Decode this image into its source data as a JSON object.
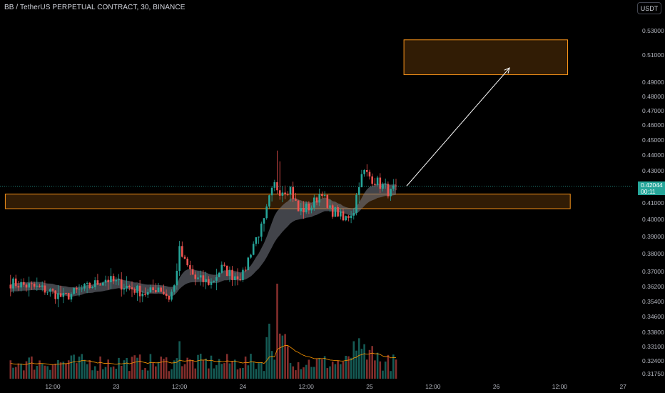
{
  "title": "BB / TetherUS PERPETUAL CONTRACT, 30, BINANCE",
  "currency_button": "USDT",
  "last_price": {
    "value": "0.42044",
    "countdown": "00:11",
    "color": "#26a69a"
  },
  "colors": {
    "up": "#26a69a",
    "down": "#ef5350",
    "zone": "#f7931a",
    "zone_fill": "#3a2106",
    "ribbon": "#787b86",
    "volume_ma": "#ff9800",
    "arrow": "#ffffff"
  },
  "chart_data": {
    "type": "candlestick",
    "y_axis": {
      "min": 0.3165,
      "max": 0.534,
      "ticks": [
        0.53,
        0.51,
        0.49,
        0.48,
        0.47,
        0.46,
        0.45,
        0.44,
        0.43,
        0.41,
        0.4,
        0.39,
        0.38,
        0.37,
        0.362,
        0.354,
        0.346,
        0.338,
        0.331,
        0.324,
        0.3175
      ],
      "tick_labels": [
        "0.53000",
        "0.51000",
        "0.49000",
        "0.48000",
        "0.47000",
        "0.46000",
        "0.45000",
        "0.44000",
        "0.43000",
        "0.41000",
        "0.40000",
        "0.39000",
        "0.38000",
        "0.37000",
        "0.36200",
        "0.35400",
        "0.34600",
        "0.33800",
        "0.33100",
        "0.32400",
        "0.31750"
      ]
    },
    "x_axis": {
      "ticks": [
        {
          "label": "12:00",
          "bar": 16
        },
        {
          "label": "23",
          "bar": 40
        },
        {
          "label": "12:00",
          "bar": 64
        },
        {
          "label": "24",
          "bar": 88
        },
        {
          "label": "12:00",
          "bar": 112
        },
        {
          "label": "25",
          "bar": 136
        },
        {
          "label": "12:00",
          "bar": 160
        },
        {
          "label": "26",
          "bar": 184
        },
        {
          "label": "12:00",
          "bar": 208
        },
        {
          "label": "27",
          "bar": 232
        }
      ]
    },
    "anchors": [
      [
        0,
        0.364
      ],
      [
        8,
        0.362
      ],
      [
        14,
        0.36
      ],
      [
        20,
        0.356
      ],
      [
        26,
        0.36
      ],
      [
        30,
        0.362
      ],
      [
        36,
        0.366
      ],
      [
        40,
        0.364
      ],
      [
        46,
        0.361
      ],
      [
        52,
        0.358
      ],
      [
        56,
        0.362
      ],
      [
        60,
        0.356
      ],
      [
        62,
        0.362
      ],
      [
        64,
        0.382
      ],
      [
        66,
        0.375
      ],
      [
        70,
        0.366
      ],
      [
        76,
        0.364
      ],
      [
        80,
        0.372
      ],
      [
        84,
        0.368
      ],
      [
        88,
        0.368
      ],
      [
        92,
        0.386
      ],
      [
        96,
        0.398
      ],
      [
        98,
        0.412
      ],
      [
        100,
        0.421
      ],
      [
        102,
        0.418
      ],
      [
        106,
        0.419
      ],
      [
        109,
        0.405
      ],
      [
        114,
        0.408
      ],
      [
        118,
        0.418
      ],
      [
        120,
        0.406
      ],
      [
        124,
        0.404
      ],
      [
        126,
        0.399
      ],
      [
        130,
        0.406
      ],
      [
        132,
        0.423
      ],
      [
        134,
        0.429
      ],
      [
        138,
        0.424
      ],
      [
        142,
        0.419
      ],
      [
        144,
        0.416
      ],
      [
        146,
        0.42044
      ]
    ],
    "zones": [
      {
        "label": "target-zone",
        "y1": 0.4955,
        "y2": 0.5225,
        "x1_bar": 149,
        "x2_bar": 211
      },
      {
        "label": "support-zone",
        "y1": 0.4065,
        "y2": 0.4155,
        "x1_bar": -2,
        "x2_bar": 212
      }
    ],
    "projection_arrow": {
      "from": [
        150,
        0.4205
      ],
      "to": [
        189,
        0.5005
      ]
    }
  }
}
